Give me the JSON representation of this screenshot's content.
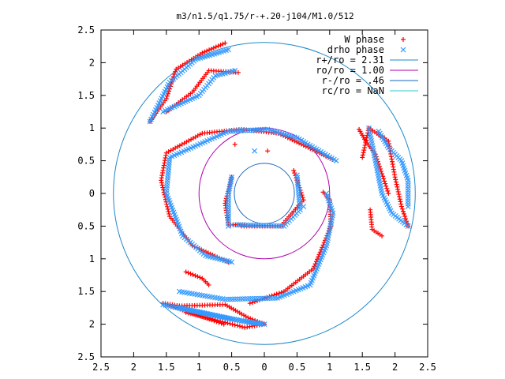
{
  "chart_data": {
    "type": "scatter",
    "title": "m3/n1.5/q1.75/r-+.20-j104/M1.0/512",
    "xlim": [
      -2.5,
      2.5
    ],
    "ylim": [
      -2.5,
      2.5
    ],
    "x_ticks": [
      -2.5,
      -2,
      -1.5,
      -1,
      -0.5,
      0,
      0.5,
      1,
      1.5,
      2,
      2.5
    ],
    "x_tick_labels": [
      "2.5",
      "2",
      "1.5",
      "1",
      "0.5",
      "0",
      "0.5",
      "1",
      "1.5",
      "2",
      "2.5"
    ],
    "y_ticks": [
      2.5,
      2,
      1.5,
      1,
      0.5,
      0,
      -0.5,
      -1,
      -1.5,
      -2,
      -2.5
    ],
    "y_tick_labels": [
      "2.5",
      "2",
      "1.5",
      "1",
      "0.5",
      "0",
      "0.5",
      "1",
      "1.5",
      "2",
      "2.5"
    ],
    "grid": false,
    "legend_position": "top-right",
    "series": [
      {
        "name": "W phase",
        "marker": "plus",
        "color": "#ff0000",
        "arms": [
          [
            [
              -0.62,
              -2.0
            ],
            [
              -1.55,
              -1.68
            ],
            [
              -1.3,
              -1.72
            ],
            [
              -0.6,
              -1.7
            ],
            [
              -0.25,
              -1.9
            ],
            [
              0.0,
              -2.0
            ],
            [
              -0.3,
              -2.05
            ],
            [
              -1.2,
              -1.82
            ]
          ],
          [
            [
              -0.22,
              -1.68
            ],
            [
              0.3,
              -1.5
            ],
            [
              0.75,
              -1.15
            ],
            [
              1.02,
              -0.5
            ],
            [
              1.0,
              -0.1
            ],
            [
              0.9,
              0.02
            ]
          ],
          [
            [
              1.05,
              0.52
            ],
            [
              0.22,
              0.92
            ],
            [
              -0.35,
              0.98
            ],
            [
              -0.95,
              0.92
            ],
            [
              -1.5,
              0.62
            ],
            [
              -1.58,
              0.2
            ],
            [
              -1.45,
              -0.35
            ],
            [
              -1.1,
              -0.8
            ],
            [
              -0.55,
              -1.05
            ]
          ],
          [
            [
              -0.35,
              -0.5
            ],
            [
              0.25,
              -0.5
            ],
            [
              0.6,
              -0.1
            ],
            [
              0.45,
              0.35
            ]
          ],
          [
            [
              -0.5,
              0.25
            ],
            [
              -0.6,
              -0.15
            ],
            [
              -0.55,
              -0.48
            ],
            [
              -0.3,
              -0.48
            ]
          ],
          [
            [
              1.5,
              0.55
            ],
            [
              1.6,
              1.0
            ],
            [
              1.9,
              0.8
            ],
            [
              2.0,
              0.25
            ],
            [
              2.1,
              -0.2
            ],
            [
              2.2,
              -0.5
            ]
          ],
          [
            [
              1.62,
              -0.25
            ],
            [
              1.65,
              -0.55
            ],
            [
              1.8,
              -0.65
            ]
          ],
          [
            [
              1.45,
              0.98
            ],
            [
              1.55,
              0.8
            ],
            [
              1.7,
              0.6
            ],
            [
              1.8,
              0.3
            ],
            [
              1.9,
              0.0
            ]
          ],
          [
            [
              -1.75,
              1.1
            ],
            [
              -1.5,
              1.45
            ],
            [
              -1.35,
              1.9
            ],
            [
              -0.95,
              2.15
            ],
            [
              -0.6,
              2.3
            ]
          ],
          [
            [
              -1.5,
              1.25
            ],
            [
              -1.1,
              1.55
            ],
            [
              -0.85,
              1.88
            ],
            [
              -0.4,
              1.85
            ]
          ],
          [
            [
              -1.2,
              -1.2
            ],
            [
              -0.95,
              -1.3
            ],
            [
              -0.85,
              -1.4
            ]
          ]
        ],
        "points": [
          [
            0.05,
            0.65
          ],
          [
            -0.45,
            0.75
          ]
        ]
      },
      {
        "name": "drho phase",
        "marker": "cross",
        "color": "#3399ff",
        "arms": [
          [
            [
              -1.55,
              -1.7
            ],
            [
              -0.6,
              -1.9
            ],
            [
              -0.2,
              -1.98
            ],
            [
              0.0,
              -2.0
            ],
            [
              -0.5,
              -1.92
            ],
            [
              -1.3,
              -1.75
            ]
          ],
          [
            [
              -1.3,
              -1.5
            ],
            [
              -0.6,
              -1.62
            ],
            [
              0.2,
              -1.6
            ],
            [
              0.7,
              -1.4
            ],
            [
              0.95,
              -0.8
            ],
            [
              1.05,
              -0.3
            ],
            [
              0.95,
              0.0
            ]
          ],
          [
            [
              1.1,
              0.5
            ],
            [
              0.5,
              0.85
            ],
            [
              0.05,
              0.98
            ],
            [
              -0.55,
              0.95
            ],
            [
              -1.45,
              0.55
            ],
            [
              -1.5,
              0.0
            ],
            [
              -1.25,
              -0.65
            ],
            [
              -0.9,
              -0.95
            ],
            [
              -0.5,
              -1.05
            ]
          ],
          [
            [
              -0.4,
              -0.48
            ],
            [
              0.3,
              -0.5
            ],
            [
              0.55,
              -0.25
            ],
            [
              0.5,
              0.28
            ]
          ],
          [
            [
              -0.5,
              0.25
            ],
            [
              -0.55,
              0.0
            ],
            [
              -0.55,
              -0.5
            ]
          ],
          [
            [
              1.6,
              1.0
            ],
            [
              1.7,
              0.5
            ],
            [
              1.8,
              0.0
            ],
            [
              1.95,
              -0.3
            ],
            [
              2.2,
              -0.5
            ]
          ],
          [
            [
              1.75,
              0.95
            ],
            [
              1.9,
              0.7
            ],
            [
              2.1,
              0.5
            ],
            [
              2.2,
              0.2
            ],
            [
              2.2,
              -0.2
            ]
          ],
          [
            [
              -1.75,
              1.1
            ],
            [
              -1.45,
              1.7
            ],
            [
              -1.05,
              2.05
            ],
            [
              -0.55,
              2.2
            ]
          ],
          [
            [
              -1.55,
              1.25
            ],
            [
              -1.0,
              1.5
            ],
            [
              -0.75,
              1.8
            ],
            [
              -0.45,
              1.88
            ]
          ]
        ],
        "points": [
          [
            -0.15,
            0.65
          ],
          [
            0.6,
            -0.2
          ],
          [
            -0.5,
            -0.48
          ]
        ]
      }
    ],
    "circles": [
      {
        "name": "r+/ro = 2.31",
        "r": 2.31,
        "color": "#1e88c8"
      },
      {
        "name": "ro/ro = 1.00",
        "r": 1.0,
        "color": "#b000b0"
      },
      {
        "name": "r-/ro = .46",
        "r": 0.46,
        "color": "#1565c0"
      },
      {
        "name": "rc/ro = NaN",
        "r": null,
        "color": "#2ec9c9"
      }
    ],
    "legend": [
      {
        "label": "W phase",
        "kind": "plus",
        "color": "#ff0000"
      },
      {
        "label": "drho phase",
        "kind": "cross",
        "color": "#3399ff"
      },
      {
        "label": "r+/ro = 2.31",
        "kind": "line",
        "color": "#1e88c8"
      },
      {
        "label": "ro/ro = 1.00",
        "kind": "line",
        "color": "#b000b0"
      },
      {
        "label": "r-/ro = .46",
        "kind": "line",
        "color": "#1565c0"
      },
      {
        "label": "rc/ro = NaN",
        "kind": "line",
        "color": "#2ec9c9"
      }
    ]
  }
}
